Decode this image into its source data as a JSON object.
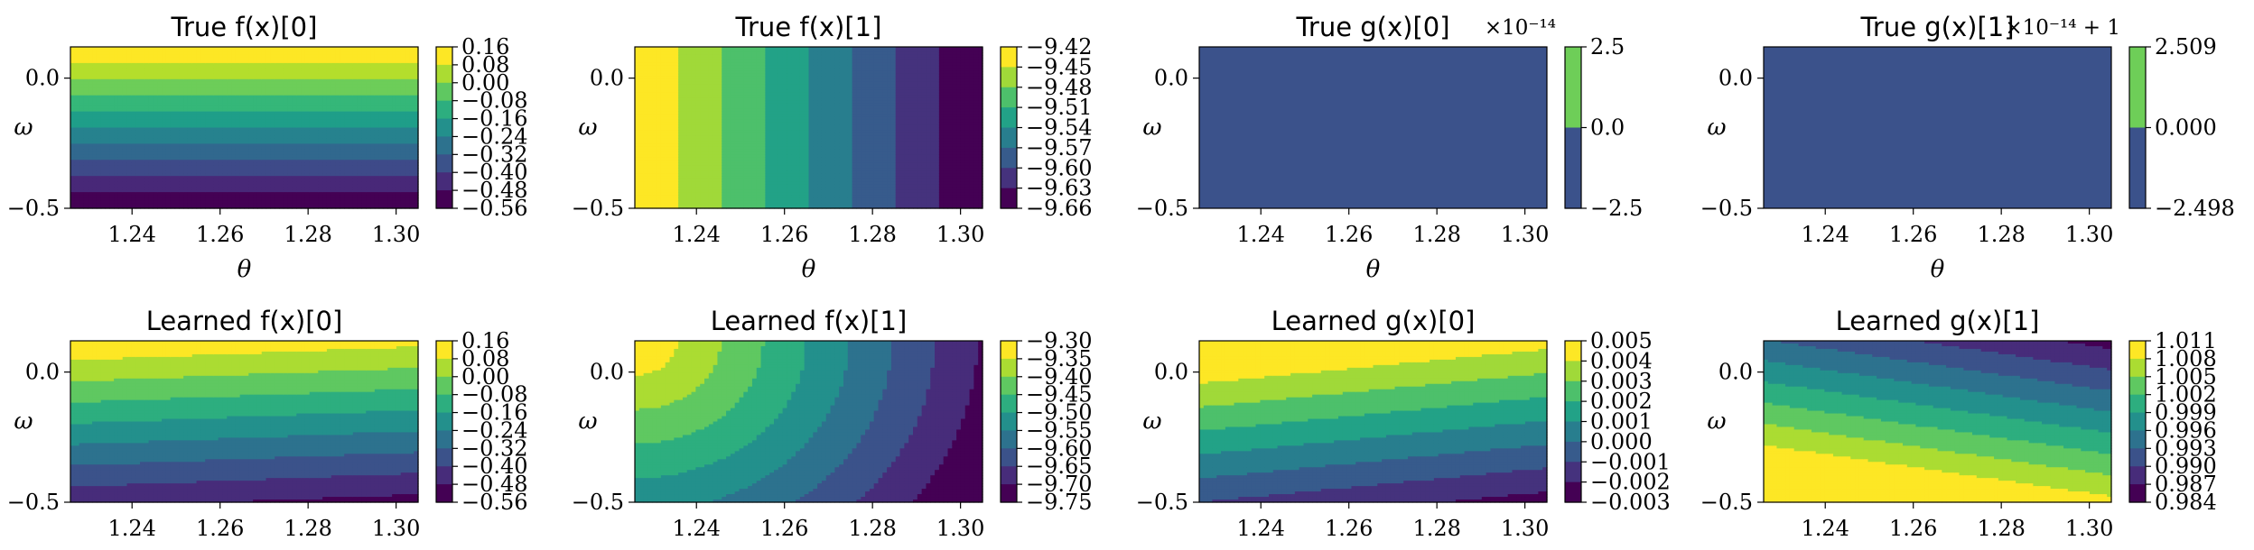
{
  "figure": {
    "rows": 2,
    "cols": 4
  },
  "chart_data": [
    {
      "type": "heatmap",
      "title": "True f(x)[0]",
      "xlabel": "θ",
      "ylabel": "ω",
      "xlim": [
        1.226,
        1.305
      ],
      "ylim": [
        -0.5,
        0.12
      ],
      "xticks": [
        "1.24",
        "1.26",
        "1.28",
        "1.30"
      ],
      "yticks": [
        "0.0",
        "−0.5"
      ],
      "colorbar": {
        "ticks": [
          "0.16",
          "0.08",
          "0.00",
          "−0.08",
          "−0.16",
          "−0.24",
          "−0.32",
          "−0.40",
          "−0.48",
          "−0.56"
        ],
        "multiplier": ""
      },
      "contour_levels": 10,
      "gradient": "vertical",
      "slope": 0,
      "values_range": [
        -0.56,
        0.16
      ],
      "high_side": "top"
    },
    {
      "type": "heatmap",
      "title": "True f(x)[1]",
      "xlabel": "θ",
      "ylabel": "ω",
      "xlim": [
        1.226,
        1.305
      ],
      "ylim": [
        -0.5,
        0.12
      ],
      "xticks": [
        "1.24",
        "1.26",
        "1.28",
        "1.30"
      ],
      "yticks": [
        "0.0",
        "−0.5"
      ],
      "colorbar": {
        "ticks": [
          "−9.42",
          "−9.45",
          "−9.48",
          "−9.51",
          "−9.54",
          "−9.57",
          "−9.60",
          "−9.63",
          "−9.66"
        ],
        "multiplier": ""
      },
      "contour_levels": 8,
      "gradient": "horizontal",
      "slope": 0,
      "values_range": [
        -9.66,
        -9.42
      ],
      "high_side": "left"
    },
    {
      "type": "heatmap",
      "title": "True g(x)[0]",
      "xlabel": "θ",
      "ylabel": "ω",
      "xlim": [
        1.226,
        1.305
      ],
      "ylim": [
        -0.5,
        0.12
      ],
      "xticks": [
        "1.24",
        "1.26",
        "1.28",
        "1.30"
      ],
      "yticks": [
        "0.0",
        "−0.5"
      ],
      "colorbar": {
        "ticks": [
          "2.5",
          "0.0",
          "−2.5"
        ],
        "multiplier": "×10⁻¹⁴"
      },
      "contour_levels": 1,
      "gradient": "constant",
      "values_range": [
        -2.5,
        2.5
      ],
      "constant_color": "#3b528b"
    },
    {
      "type": "heatmap",
      "title": "True g(x)[1]",
      "xlabel": "θ",
      "ylabel": "ω",
      "xlim": [
        1.226,
        1.305
      ],
      "ylim": [
        -0.5,
        0.12
      ],
      "xticks": [
        "1.24",
        "1.26",
        "1.28",
        "1.30"
      ],
      "yticks": [
        "0.0",
        "−0.5"
      ],
      "colorbar": {
        "ticks": [
          "2.509",
          "0.000",
          "−2.498"
        ],
        "multiplier": "×10⁻¹⁴ + 1"
      },
      "contour_levels": 1,
      "gradient": "constant",
      "values_range": [
        -2.498,
        2.509
      ],
      "constant_color": "#3b528b"
    },
    {
      "type": "heatmap",
      "title": "Learned f(x)[0]",
      "xlabel": "",
      "ylabel": "ω",
      "xlim": [
        1.226,
        1.305
      ],
      "ylim": [
        -0.5,
        0.12
      ],
      "xticks": [
        "1.24",
        "1.26",
        "1.28",
        "1.30"
      ],
      "yticks": [
        "0.0",
        "−0.5"
      ],
      "colorbar": {
        "ticks": [
          "0.16",
          "0.08",
          "0.00",
          "−0.08",
          "−0.16",
          "−0.24",
          "−0.32",
          "−0.40",
          "−0.48",
          "−0.56"
        ],
        "multiplier": ""
      },
      "contour_levels": 9,
      "gradient": "tilted",
      "slope": 0.12,
      "values_range": [
        -0.56,
        0.16
      ],
      "high_side": "top"
    },
    {
      "type": "heatmap",
      "title": "Learned f(x)[1]",
      "xlabel": "",
      "ylabel": "ω",
      "xlim": [
        1.226,
        1.305
      ],
      "ylim": [
        -0.5,
        0.12
      ],
      "xticks": [
        "1.24",
        "1.26",
        "1.28",
        "1.30"
      ],
      "yticks": [
        "0.0",
        "−0.5"
      ],
      "colorbar": {
        "ticks": [
          "−9.30",
          "−9.35",
          "−9.40",
          "−9.45",
          "−9.50",
          "−9.55",
          "−9.60",
          "−9.65",
          "−9.70",
          "−9.75"
        ],
        "multiplier": ""
      },
      "contour_levels": 9,
      "gradient": "curved",
      "values_range": [
        -9.75,
        -9.3
      ],
      "high_side": "top-left"
    },
    {
      "type": "heatmap",
      "title": "Learned g(x)[0]",
      "xlabel": "",
      "ylabel": "ω",
      "xlim": [
        1.226,
        1.305
      ],
      "ylim": [
        -0.5,
        0.12
      ],
      "xticks": [
        "1.24",
        "1.26",
        "1.28",
        "1.30"
      ],
      "yticks": [
        "0.0",
        "−0.5"
      ],
      "colorbar": {
        "ticks": [
          "0.005",
          "0.004",
          "0.003",
          "0.002",
          "0.001",
          "0.000",
          "−0.001",
          "−0.002",
          "−0.003"
        ],
        "multiplier": ""
      },
      "contour_levels": 8,
      "gradient": "tilted",
      "slope": 0.3,
      "values_range": [
        -0.003,
        0.005
      ],
      "high_side": "top-right"
    },
    {
      "type": "heatmap",
      "title": "Learned g(x)[1]",
      "xlabel": "",
      "ylabel": "ω",
      "xlim": [
        1.226,
        1.305
      ],
      "ylim": [
        -0.5,
        0.12
      ],
      "xticks": [
        "1.24",
        "1.26",
        "1.28",
        "1.30"
      ],
      "yticks": [
        "0.0",
        "−0.5"
      ],
      "colorbar": {
        "ticks": [
          "1.011",
          "1.008",
          "1.005",
          "1.002",
          "0.999",
          "0.996",
          "0.993",
          "0.990",
          "0.987",
          "0.984"
        ],
        "multiplier": ""
      },
      "contour_levels": 9,
      "gradient": "tilted",
      "slope": 0.45,
      "values_range": [
        0.984,
        1.011
      ],
      "high_side": "bottom-left"
    }
  ]
}
